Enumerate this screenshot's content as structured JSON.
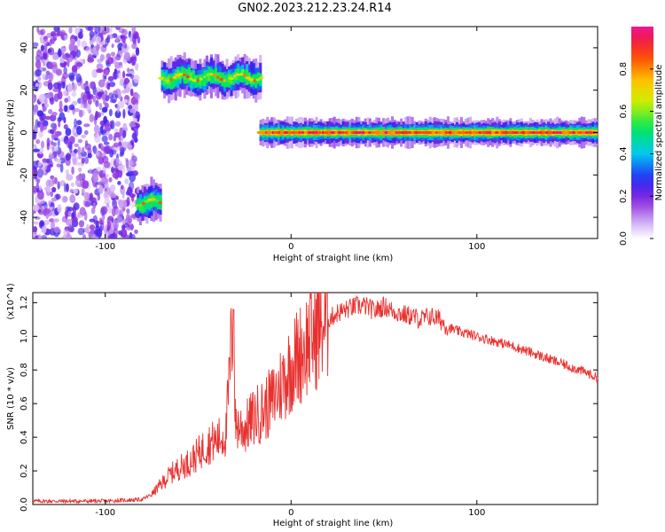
{
  "title": "GN02.2023.212.23.24.R14",
  "chart_data": [
    {
      "type": "heatmap",
      "title": "GN02.2023.212.23.24.R14",
      "xlabel": "Height of straight line (km)",
      "ylabel": "Frequency (Hz)",
      "xlim": [
        -139,
        165
      ],
      "ylim": [
        -50,
        50
      ],
      "xticks": [
        -100,
        0,
        100
      ],
      "yticks": [
        -40,
        -20,
        0,
        20,
        40
      ],
      "colorbar": {
        "label": "Normalized spectral amplitude",
        "range": [
          0.0,
          1.0
        ],
        "ticks": [
          "0.0",
          "0.2",
          "0.4",
          "0.6",
          "0.8"
        ],
        "colormap": "rainbow (white-purple-blue-cyan-green-yellow-orange-red-pink)"
      },
      "features": [
        {
          "name": "noise",
          "x_range": [
            -139,
            -82
          ],
          "freq_range": [
            -50,
            50
          ],
          "amplitude": "low"
        },
        {
          "name": "band",
          "x_range": [
            -83,
            -70
          ],
          "freq_center": -33,
          "amplitude": "medium"
        },
        {
          "name": "band",
          "x_range": [
            -70,
            -16
          ],
          "freq_center": 26,
          "amplitude": "medium"
        },
        {
          "name": "band",
          "x_range": [
            -17,
            165
          ],
          "freq_center": 0,
          "amplitude": "high"
        }
      ]
    },
    {
      "type": "line",
      "xlabel": "Height of straight line (km)",
      "ylabel": "SNR (10 * v/v)",
      "y_multiplier": "(x10^4)",
      "xlim": [
        -139,
        165
      ],
      "ylim": [
        0,
        1.26
      ],
      "xticks": [
        -100,
        0,
        100
      ],
      "yticks": [
        "0.0",
        "0.2",
        "0.4",
        "0.6",
        "0.8",
        "1.0",
        "1.2"
      ],
      "color": "#e8312f",
      "series": [
        {
          "x": [
            -139,
            -120,
            -100,
            -80,
            -75,
            -70,
            -65,
            -60,
            -55,
            -50,
            -45,
            -40,
            -35,
            -31,
            -30,
            -25,
            -20,
            -15,
            -10,
            -5,
            0,
            5,
            10,
            15,
            20,
            25,
            30,
            35,
            40,
            45,
            50,
            55,
            60,
            65,
            70,
            75,
            80,
            85,
            90,
            100,
            110,
            120,
            130,
            140,
            150,
            160,
            165
          ],
          "y": [
            0.02,
            0.02,
            0.02,
            0.03,
            0.06,
            0.12,
            0.18,
            0.22,
            0.25,
            0.3,
            0.36,
            0.38,
            0.42,
            1.16,
            0.48,
            0.45,
            0.52,
            0.56,
            0.62,
            0.72,
            0.82,
            0.9,
            0.98,
            1.05,
            1.1,
            1.14,
            1.16,
            1.18,
            1.18,
            1.15,
            1.18,
            1.15,
            1.13,
            1.12,
            1.1,
            1.12,
            1.1,
            1.05,
            1.03,
            1.0,
            0.97,
            0.94,
            0.9,
            0.86,
            0.82,
            0.78,
            0.75
          ]
        }
      ]
    }
  ]
}
